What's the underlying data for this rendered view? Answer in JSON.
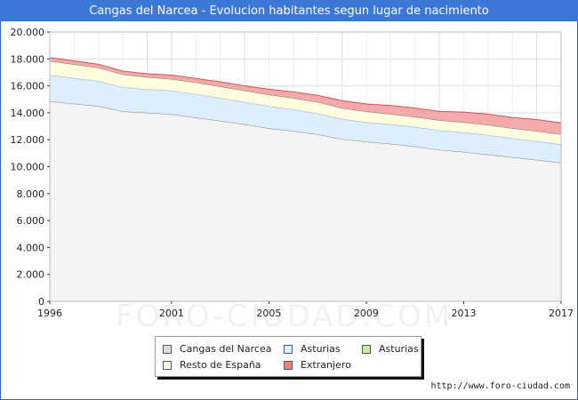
{
  "header": {
    "title": "Cangas del Narcea - Evolucion habitantes segun lugar de nacimiento"
  },
  "footer": {
    "credit": "http://www.foro-ciudad.com",
    "watermark": "FORO-CIUDAD.COM"
  },
  "chart_data": {
    "type": "area",
    "stacked": true,
    "title": "Cangas del Narcea - Evolucion habitantes segun lugar de nacimiento",
    "xlabel": "",
    "ylabel": "",
    "x": [
      1996,
      1998,
      1999,
      2000,
      2001,
      2002,
      2003,
      2004,
      2005,
      2006,
      2007,
      2008,
      2009,
      2010,
      2011,
      2012,
      2013,
      2014,
      2015,
      2016,
      2017
    ],
    "xticks": [
      1996,
      2001,
      2005,
      2009,
      2013,
      2017
    ],
    "xticklabels": [
      "1996",
      "2001",
      "2005",
      "2009",
      "2013",
      "2017"
    ],
    "ylim": [
      0,
      20000
    ],
    "yticks": [
      0,
      2000,
      4000,
      6000,
      8000,
      10000,
      12000,
      14000,
      16000,
      18000,
      20000
    ],
    "yticklabels": [
      "0",
      "2.000",
      "4.000",
      "6.000",
      "8.000",
      "10.000",
      "12.000",
      "14.000",
      "16.000",
      "18.000",
      "20.000"
    ],
    "grid": true,
    "legend_position": "bottom",
    "series": [
      {
        "name": "Cangas del Narcea",
        "color": "#f3f3f3",
        "line": "#808080",
        "values": [
          14850,
          14500,
          14100,
          14000,
          13900,
          13650,
          13400,
          13150,
          12850,
          12650,
          12400,
          12050,
          11850,
          11700,
          11500,
          11250,
          11100,
          10900,
          10700,
          10500,
          10300
        ]
      },
      {
        "name": "Asturias",
        "color": "#ddeeff",
        "line": "#8aaace",
        "values": [
          1950,
          1850,
          1800,
          1750,
          1750,
          1750,
          1700,
          1650,
          1650,
          1600,
          1550,
          1500,
          1450,
          1450,
          1450,
          1450,
          1450,
          1450,
          1400,
          1400,
          1350
        ]
      },
      {
        "name": "Asturias",
        "color": "#ccee99",
        "line": "#88aa55",
        "values": [
          0,
          0,
          0,
          0,
          0,
          0,
          0,
          0,
          0,
          0,
          0,
          0,
          0,
          0,
          0,
          0,
          0,
          0,
          0,
          0,
          0
        ]
      },
      {
        "name": "Resto de España",
        "color": "#ffffe0",
        "line": "#777777",
        "values": [
          1050,
          1000,
          950,
          900,
          850,
          850,
          850,
          850,
          850,
          850,
          850,
          800,
          800,
          750,
          750,
          750,
          750,
          750,
          750,
          750,
          750
        ]
      },
      {
        "name": "Extranjero",
        "color": "#f4aaaa",
        "line": "#cc5555",
        "values": [
          250,
          250,
          250,
          250,
          300,
          300,
          350,
          350,
          400,
          450,
          500,
          550,
          550,
          650,
          650,
          650,
          750,
          800,
          800,
          850,
          850
        ]
      }
    ]
  },
  "legend": {
    "items": [
      {
        "label": "Cangas del Narcea",
        "color": "#dcdcdc"
      },
      {
        "label": "Asturias",
        "color": "#ddeeff"
      },
      {
        "label": "Asturias",
        "color": "#ccee99"
      },
      {
        "label": "Resto de España",
        "color": "#ffffe0"
      },
      {
        "label": "Extranjero",
        "color": "#f08080"
      }
    ]
  }
}
